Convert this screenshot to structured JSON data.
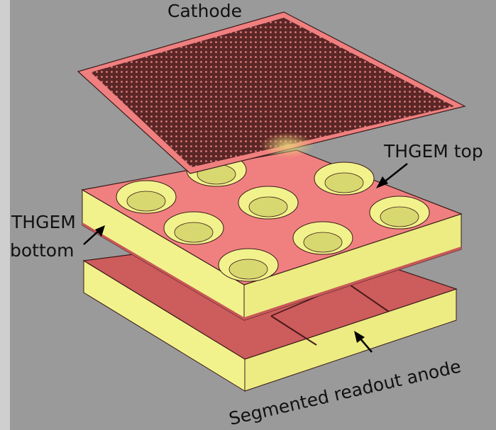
{
  "labels": {
    "cathode": "Cathode",
    "thgem_top": "THGEM top",
    "thgem_bottom_line1": "THGEM",
    "thgem_bottom_line2": "bottom",
    "anode": "Segmented readout anode"
  },
  "colors": {
    "background": "#9a9a9a",
    "copper_pink": "#f08080",
    "insulator_yellow": "#f2f28c",
    "mesh_dark": "#5a2626",
    "anode_pad": "#cd5c5c",
    "outline": "#3a1a1a"
  }
}
